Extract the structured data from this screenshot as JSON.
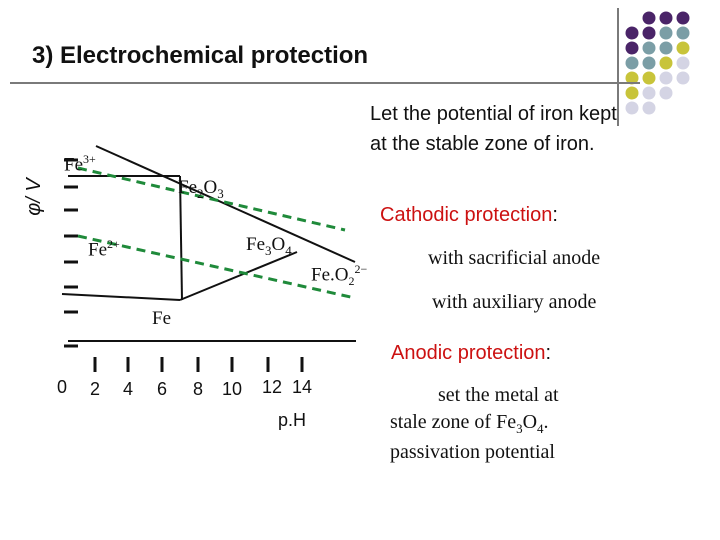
{
  "title": "3) Electrochemical protection",
  "note": {
    "line1": "Let the potential of iron kept",
    "line2": "at the stable zone of iron."
  },
  "axes": {
    "ylabel": "φ/ V",
    "xlabel": "p.H",
    "xticks": [
      "0",
      "2",
      "4",
      "6",
      "8",
      "10",
      "12  14"
    ]
  },
  "regions": {
    "fe3": "Fe",
    "fe3_sup": "3+",
    "fe2o3": "Fe",
    "fe2o3_sub1": "2",
    "fe2o3_o": "O",
    "fe2o3_sub2": "3",
    "fe2": "Fe",
    "fe2_sup": "2+",
    "fe3o4": "Fe",
    "fe3o4_sub1": "3",
    "fe3o4_o": "O",
    "fe3o4_sub2": "4",
    "feo2": "Fe.O",
    "feo2_sub": "2",
    "feo2_sup": "2−",
    "fe": "Fe"
  },
  "cathodic": {
    "heading": "Cathodic protection",
    "colon": ":",
    "item1": "with sacrificial anode",
    "item2": "with auxiliary anode"
  },
  "anodic": {
    "heading": "Anodic protection",
    "colon": ":",
    "line1": "set the metal at",
    "line2a": "stale zone of Fe",
    "line2_sub1": "3",
    "line2_o": "O",
    "line2_sub2": "4",
    "line2_end": ".",
    "line3": "passivation potential"
  },
  "colors": {
    "accent_red": "#cc1111",
    "dash_green": "#1f8a3a",
    "dot_purple": "#4a2468",
    "dot_teal": "#7b9ea6",
    "dot_yellow": "#c8c43a",
    "dot_lavender": "#d4d4e4"
  }
}
